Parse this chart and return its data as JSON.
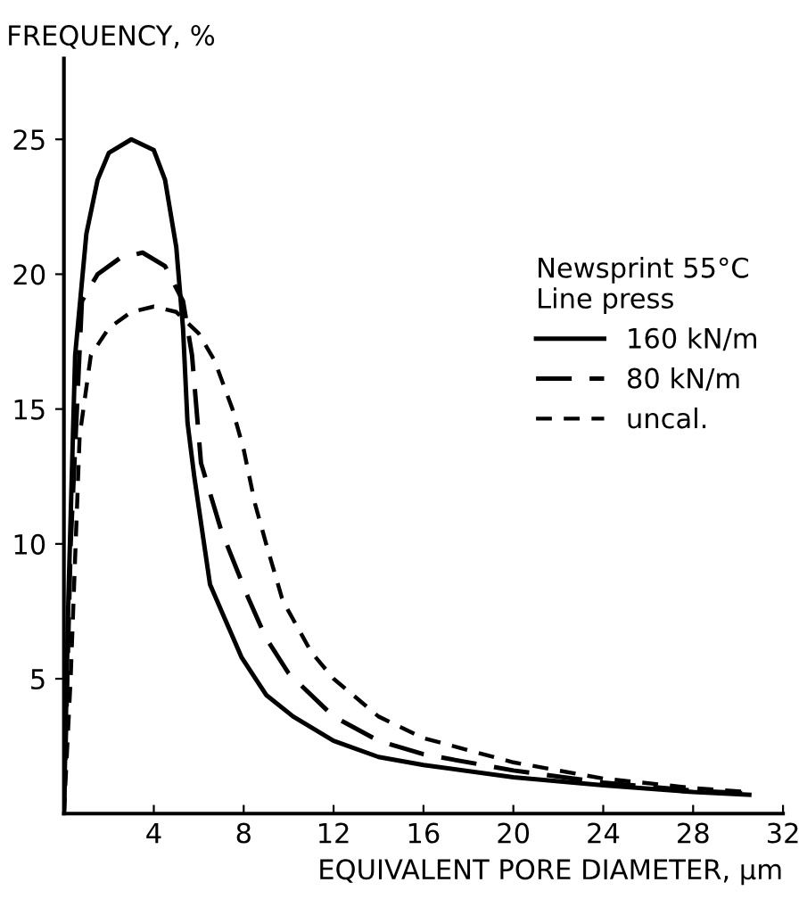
{
  "chart_data": {
    "type": "line",
    "xlabel": "EQUIVALENT PORE DIAMETER, µm",
    "ylabel": "FREQUENCY, %",
    "legend_title": "Newsprint 55°C\nLine press",
    "series": [
      {
        "name": "160 kN/m",
        "color": "#000000",
        "line_style": "solid",
        "x": [
          0,
          0.2,
          0.5,
          1,
          1.5,
          2,
          3,
          4,
          4.5,
          5,
          5.3,
          5.5,
          5.8,
          6.5,
          7.9,
          9,
          10.2,
          12,
          14,
          16,
          20,
          24,
          28,
          30.5
        ],
        "values": [
          0,
          8,
          17,
          21.5,
          23.5,
          24.5,
          25,
          24.6,
          23.5,
          21,
          18,
          14.5,
          12.5,
          8.5,
          5.8,
          4.4,
          3.6,
          2.7,
          2.1,
          1.8,
          1.35,
          1.05,
          0.8,
          0.7
        ]
      },
      {
        "name": "80 kN/m",
        "color": "#000000",
        "line_style": "dashed",
        "x": [
          0,
          0.3,
          0.8,
          1.5,
          2.5,
          3.5,
          4.5,
          5.3,
          5.7,
          6.1,
          7,
          8.2,
          9,
          10,
          12,
          14,
          16,
          20,
          24,
          28,
          30.5
        ],
        "values": [
          0,
          10,
          19,
          20,
          20.6,
          20.8,
          20.3,
          19,
          17,
          13,
          10.5,
          8,
          6.5,
          5.2,
          3.6,
          2.7,
          2.2,
          1.6,
          1.15,
          0.85,
          0.75
        ]
      },
      {
        "name": "uncal.",
        "color": "#000000",
        "line_style": "dotted",
        "x": [
          0,
          0.3,
          0.7,
          1.2,
          2,
          3,
          4,
          5,
          6,
          6.7,
          7.5,
          8,
          8.5,
          9,
          9.7,
          10,
          11,
          12,
          14,
          16,
          20,
          24,
          28,
          30.5
        ],
        "values": [
          0,
          5,
          14,
          17,
          18,
          18.6,
          18.8,
          18.6,
          17.8,
          16.8,
          15,
          13.5,
          11.5,
          10,
          8,
          7.5,
          6,
          5,
          3.6,
          2.8,
          1.9,
          1.3,
          0.95,
          0.8
        ]
      }
    ],
    "xlim": [
      0,
      32
    ],
    "xticks": [
      4,
      8,
      12,
      16,
      20,
      24,
      28,
      32
    ],
    "ylim": [
      0,
      28
    ],
    "yticks": [
      5,
      10,
      15,
      20,
      25
    ],
    "grid": false,
    "legend": "center right"
  }
}
